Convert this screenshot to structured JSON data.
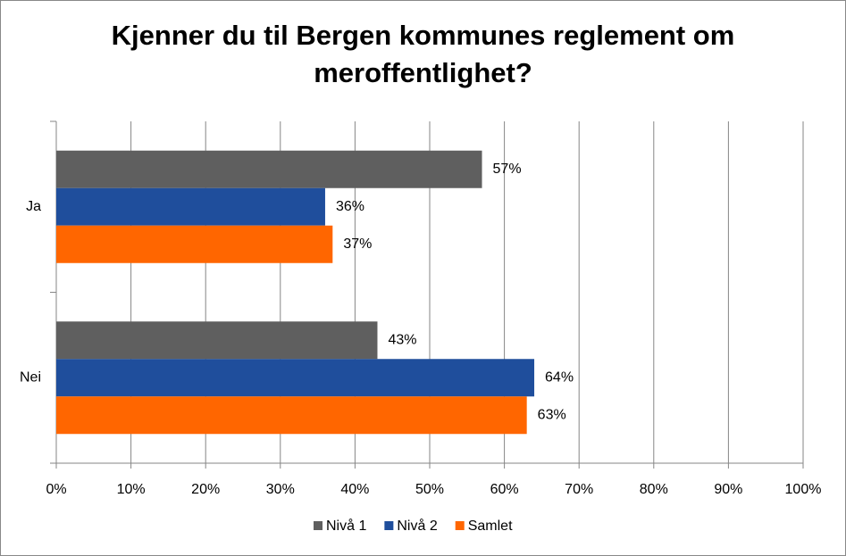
{
  "chart_data": {
    "type": "hbar",
    "title": "Kjenner du til Bergen kommunes reglement om meroffentlighet?",
    "categories": [
      "Ja",
      "Nei"
    ],
    "series": [
      {
        "name": "Nivå 1",
        "color": "#5f5f5f",
        "values": [
          57,
          43
        ],
        "value_labels": [
          "57%",
          "43%"
        ]
      },
      {
        "name": "Nivå 2",
        "color": "#1f4e9c",
        "values": [
          36,
          64
        ],
        "value_labels": [
          "36%",
          "64%"
        ]
      },
      {
        "name": "Samlet",
        "color": "#ff6600",
        "values": [
          37,
          63
        ],
        "value_labels": [
          "37%",
          "63%"
        ]
      }
    ],
    "xlim": [
      0,
      100
    ],
    "xticks": [
      {
        "value": 0,
        "label": "0%"
      },
      {
        "value": 10,
        "label": "10%"
      },
      {
        "value": 20,
        "label": "20%"
      },
      {
        "value": 30,
        "label": "30%"
      },
      {
        "value": 40,
        "label": "40%"
      },
      {
        "value": 50,
        "label": "50%"
      },
      {
        "value": 60,
        "label": "60%"
      },
      {
        "value": 70,
        "label": "70%"
      },
      {
        "value": 80,
        "label": "80%"
      },
      {
        "value": 90,
        "label": "90%"
      },
      {
        "value": 100,
        "label": "100%"
      }
    ],
    "grid": true,
    "legend": "bottom"
  }
}
